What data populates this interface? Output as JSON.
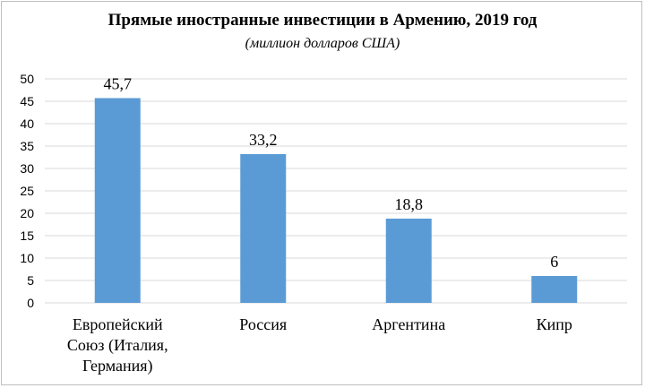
{
  "chart_data": {
    "type": "bar",
    "title": "Прямые иностранные инвестиции в Армению, 2019 год",
    "subtitle": "(миллион долларов США)",
    "categories": [
      [
        "Европейский",
        "Союз (Италия,",
        "Германия)"
      ],
      [
        "Россия"
      ],
      [
        "Аргентина"
      ],
      [
        "Кипр"
      ]
    ],
    "values": [
      45.7,
      33.2,
      18.8,
      6
    ],
    "data_labels": [
      "45,7",
      "33,2",
      "18,8",
      "6"
    ],
    "y_ticks": [
      0,
      5,
      10,
      15,
      20,
      25,
      30,
      35,
      40,
      45,
      50
    ],
    "ylim": [
      0,
      50
    ],
    "grid": true,
    "bar_color": "#5b9bd5",
    "grid_color": "#d9d9d9"
  }
}
